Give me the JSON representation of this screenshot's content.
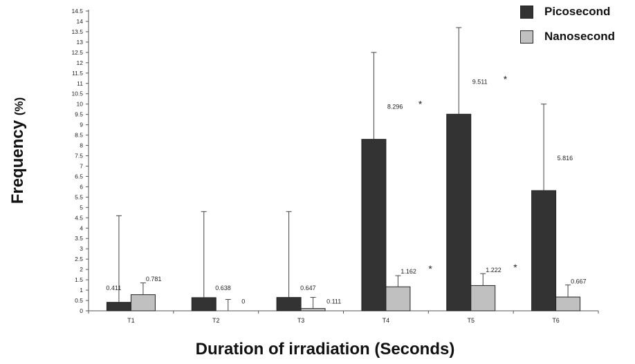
{
  "chart_data": {
    "type": "bar",
    "categories": [
      "T1",
      "T2",
      "T3",
      "T4",
      "T5",
      "T6"
    ],
    "series": [
      {
        "name": "Picosecond",
        "color": "#333333",
        "values": [
          0.411,
          0.638,
          0.647,
          8.296,
          9.511,
          5.816
        ],
        "labels": [
          "0.411",
          "0.638",
          "0.647",
          "8.296",
          "9.511",
          "5.816"
        ],
        "error_upper": [
          4.6,
          4.8,
          4.8,
          12.5,
          13.7,
          10.0
        ],
        "significant": [
          false,
          false,
          false,
          true,
          true,
          false
        ]
      },
      {
        "name": "Nanosecond",
        "color": "#c0c0c0",
        "values": [
          0.781,
          0,
          0.111,
          1.162,
          1.222,
          0.667
        ],
        "labels": [
          "0.781",
          "0",
          "0.111",
          "1.162",
          "1.222",
          "0.667"
        ],
        "error_upper": [
          1.35,
          0.55,
          0.65,
          1.7,
          1.8,
          1.25
        ],
        "significant": [
          false,
          false,
          false,
          true,
          true,
          false
        ]
      }
    ],
    "significance_marker": "*",
    "ylim": [
      0,
      14.5
    ],
    "ytick_step": 0.5,
    "xlabel": "Duration of irradiation (Seconds)",
    "ylabel": "Frequency",
    "ylabel_unit": "(%)",
    "legend_position": "top-right",
    "grid": false
  }
}
